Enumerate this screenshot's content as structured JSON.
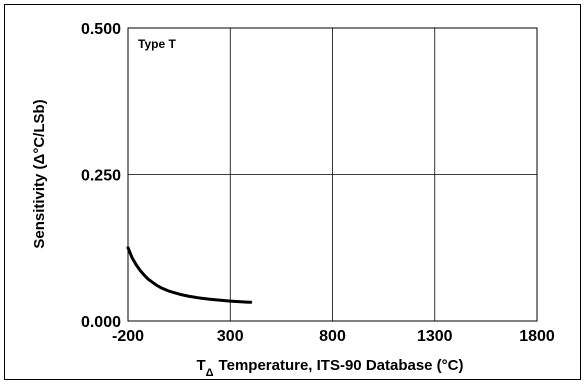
{
  "chart_data": {
    "type": "line",
    "annotation": "Type T",
    "xlabel": "Temperature, ITS-90 Database (°C)",
    "xlabel_symbol": "T",
    "xlabel_subscript": "Δ",
    "ylabel": "Sensitivity (Δ°C/LSb)",
    "xlim": [
      -200,
      1800
    ],
    "ylim": [
      0,
      0.5
    ],
    "xticks": [
      -200,
      300,
      800,
      1300,
      1800
    ],
    "xtick_labels": [
      "-200",
      "300",
      "800",
      "1300",
      "1800"
    ],
    "yticks": [
      0,
      0.25,
      0.5
    ],
    "ytick_labels": [
      "0.000",
      "0.250",
      "0.500"
    ],
    "grid": true,
    "series": [
      {
        "color": "#000000",
        "x": [
          -200,
          -180,
          -160,
          -140,
          -120,
          -100,
          -80,
          -60,
          -40,
          -20,
          0,
          20,
          40,
          60,
          80,
          100,
          120,
          140,
          160,
          180,
          200,
          220,
          240,
          260,
          280,
          300,
          320,
          340,
          360,
          380,
          400
        ],
        "y": [
          0.125,
          0.108,
          0.096,
          0.086,
          0.078,
          0.071,
          0.066,
          0.061,
          0.057,
          0.054,
          0.051,
          0.049,
          0.047,
          0.045,
          0.0435,
          0.042,
          0.041,
          0.0398,
          0.0388,
          0.038,
          0.0372,
          0.0365,
          0.0358,
          0.0352,
          0.0346,
          0.034,
          0.0335,
          0.0331,
          0.0327,
          0.0323,
          0.032
        ]
      }
    ]
  }
}
